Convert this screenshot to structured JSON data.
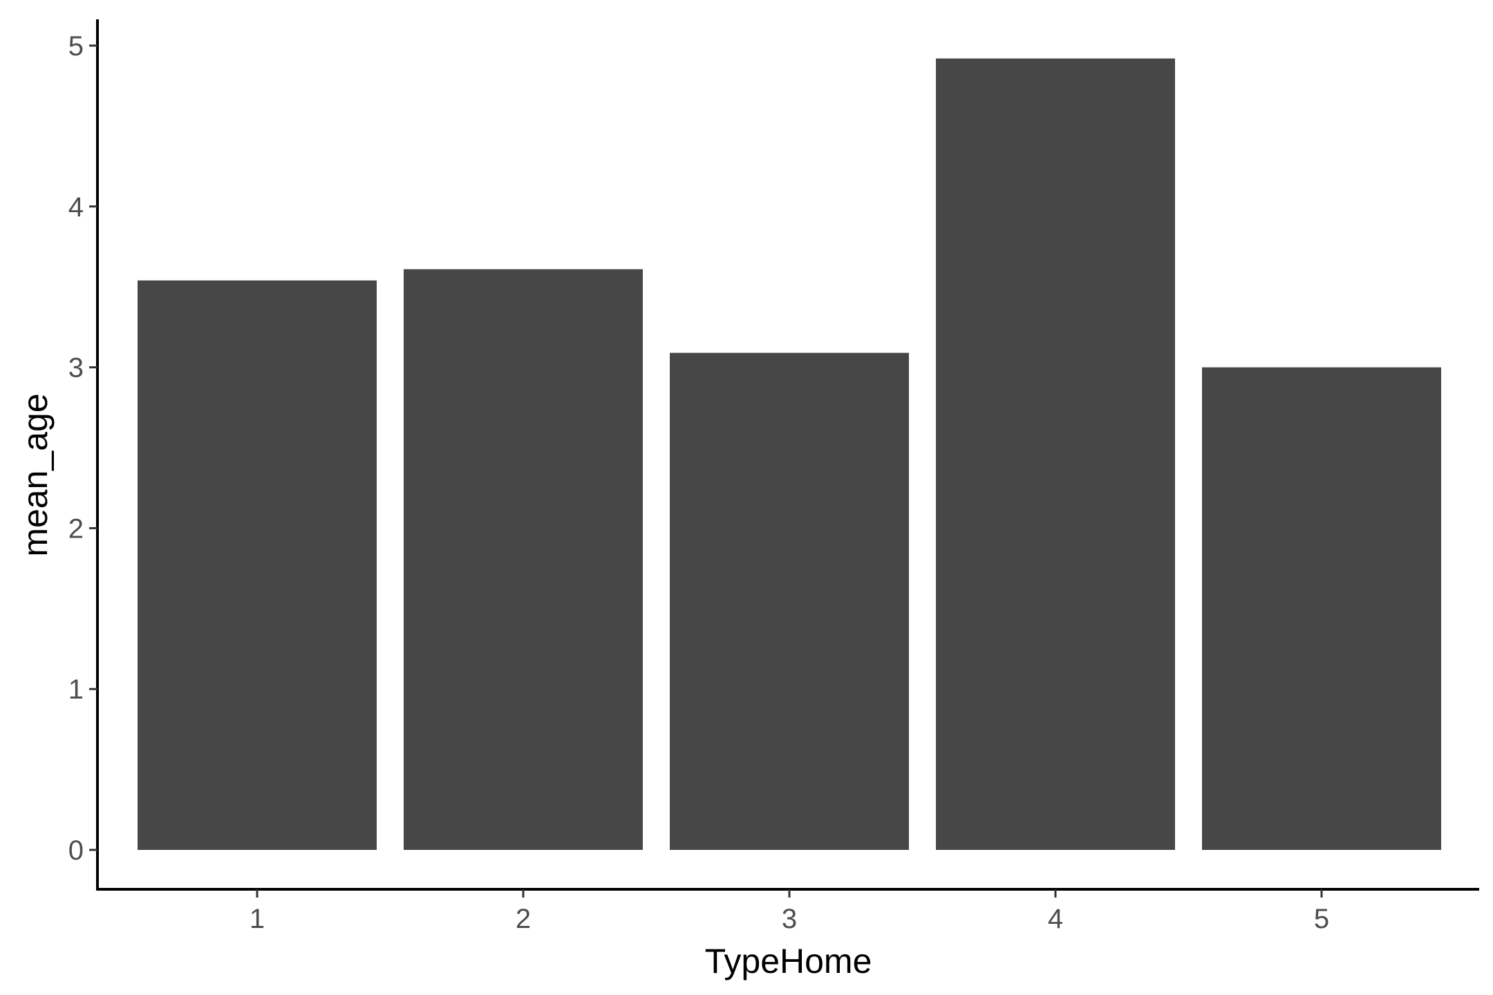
{
  "chart_data": {
    "type": "bar",
    "title": "",
    "xlabel": "TypeHome",
    "ylabel": "mean_age",
    "categories": [
      "1",
      "2",
      "3",
      "4",
      "5"
    ],
    "values": [
      3.54,
      3.61,
      3.09,
      4.92,
      3.0
    ],
    "ylim": [
      0,
      5
    ],
    "yticks": [
      "0",
      "1",
      "2",
      "3",
      "4",
      "5"
    ],
    "grid": false,
    "legend": "none",
    "bar_color": "#474747",
    "axis_color": "#000000",
    "tick_label_color": "#4d4d4d"
  }
}
